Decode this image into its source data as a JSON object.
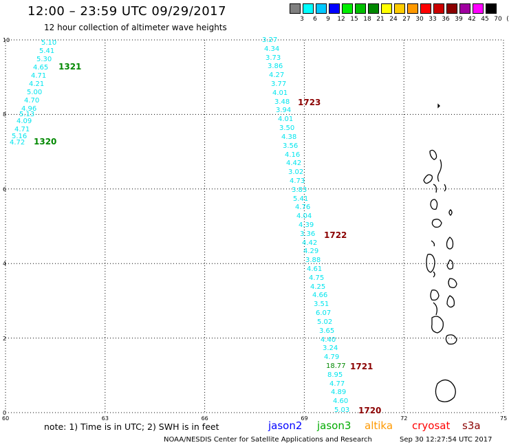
{
  "header": {
    "title": "12:00 – 23:59 UTC 09/29/2017",
    "subtitle": "12 hour collection of altimeter wave heights"
  },
  "color_scale": {
    "colors": [
      "#808080",
      "#00ffff",
      "#00c8ff",
      "#0000ff",
      "#00ee00",
      "#00c000",
      "#008800",
      "#ffff00",
      "#ffcc00",
      "#ff9900",
      "#ff0000",
      "#cc0000",
      "#8b0000",
      "#a000a0",
      "#ff00ff",
      "#000000"
    ],
    "labels": [
      "3",
      "6",
      "9",
      "12",
      "15",
      "18",
      "21",
      "24",
      "27",
      "30",
      "33",
      "36",
      "39",
      "42",
      "45",
      "70",
      "(ft)"
    ]
  },
  "map_data": {
    "lon_ticks": [
      "60",
      "63",
      "66",
      "69",
      "72",
      "75"
    ],
    "lat_ticks": [
      "10",
      "8",
      "6",
      "4",
      "2",
      "0"
    ],
    "lon_range": [
      60,
      75
    ],
    "lat_range": [
      0,
      10
    ],
    "tracks": [
      {
        "values": [
          "5.10",
          "5.41",
          "5.30",
          "4.65",
          "4.71",
          "4.21",
          "5.00",
          "4.70",
          "4.96",
          "5.13",
          "4.09",
          "4.71",
          "5.16",
          "4.72"
        ],
        "time_labels": [
          {
            "text": "1321",
            "color": "#008800"
          },
          {
            "text": "1320",
            "color": "#008800"
          }
        ]
      },
      {
        "values": [
          "3.27",
          "4.34",
          "3.73",
          "3.86",
          "4.27",
          "3.77",
          "4.01",
          "3.48",
          "3.94",
          "4.01",
          "3.50",
          "4.38",
          "3.56",
          "4.16",
          "4.42",
          "3.02",
          "4.73",
          "3.83",
          "5.41",
          "4.76",
          "4.04",
          "4.39",
          "3.36",
          "4.42",
          "4.29",
          "3.88",
          "4.61",
          "4.75",
          "4.25",
          "4.66",
          "3.51",
          "6.07",
          "5.02",
          "3.65",
          "4.40",
          "3.24",
          "4.79",
          "18.77",
          "8.95",
          "4.77",
          "4.89",
          "4.60",
          "5.03"
        ],
        "highlight": {
          "value": "18.77",
          "color": "#008800"
        },
        "time_labels": [
          {
            "text": "1723",
            "color": "#8b0000"
          },
          {
            "text": "1722",
            "color": "#8b0000"
          },
          {
            "text": "1721",
            "color": "#8b0000"
          },
          {
            "text": "1720",
            "color": "#8b0000"
          }
        ]
      }
    ]
  },
  "footer": {
    "note": "note:  1) Time is in UTC; 2) SWH is in feet",
    "satellites": [
      {
        "name": "jason2",
        "color": "#0000ff"
      },
      {
        "name": "jason3",
        "color": "#00aa00"
      },
      {
        "name": "altika",
        "color": "#ff9900"
      },
      {
        "name": "cryosat",
        "color": "#ff0000"
      },
      {
        "name": "s3a",
        "color": "#8b0000"
      }
    ],
    "credit": "NOAA/NESDIS Center for Satellite Applications and Research",
    "timestamp": "Sep 30 12:27:54 UTC 2017"
  }
}
